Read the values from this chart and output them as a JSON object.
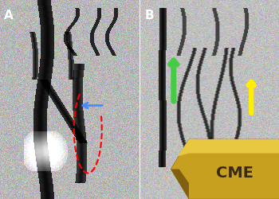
{
  "fig_width": 3.5,
  "fig_height": 2.5,
  "dpi": 100,
  "bg_color": "#ffffff",
  "panel_A_label": "A",
  "panel_B_label": "B",
  "label_color": "#ffffff",
  "label_fontsize": 11,
  "blue_arrow_color": "#4488ff",
  "green_arrow_color": "#44cc44",
  "yellow_arrow_color": "#ffee00",
  "cme_ribbon_color_main": "#c8a020",
  "cme_ribbon_color_light": "#e8c840",
  "cme_ribbon_color_dark": "#806010",
  "cme_text": "CME",
  "cme_text_color": "#3a2a10",
  "cme_fontsize": 14
}
